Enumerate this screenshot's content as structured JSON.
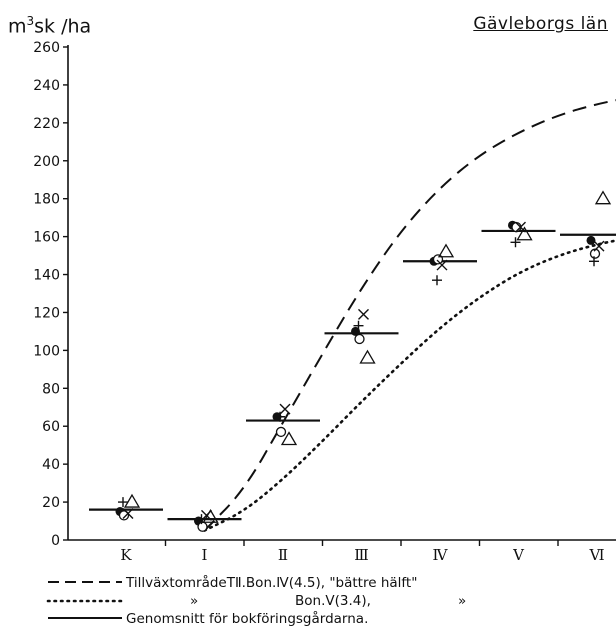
{
  "chart_data": {
    "type": "scatter",
    "title": "Gävleborgs län",
    "ylabel_main": "m",
    "ylabel_sup": "3",
    "ylabel_rest": "sk /ha",
    "ylim": [
      0,
      260
    ],
    "yticks": [
      0,
      20,
      40,
      60,
      80,
      100,
      120,
      140,
      160,
      180,
      200,
      220,
      240,
      260
    ],
    "categories": [
      "K",
      "I",
      "II",
      "III",
      "IV",
      "V",
      "VI"
    ],
    "category_labels": [
      "K",
      "I",
      "Ⅱ",
      "Ⅲ",
      "Ⅳ",
      "Ⅴ",
      "Ⅵ"
    ],
    "average_label": "Genomsnitt för bokföringsgårdarna",
    "averages": [
      16,
      11,
      63,
      109,
      147,
      163,
      161
    ],
    "point_series": [
      {
        "marker": "filled-circle",
        "values": [
          15,
          10,
          65,
          110,
          147,
          166,
          158
        ]
      },
      {
        "marker": "open-circle",
        "values": [
          13,
          7,
          57,
          106,
          148,
          165,
          151
        ]
      },
      {
        "marker": "cross",
        "values": [
          14,
          13,
          69,
          119,
          145,
          165,
          155
        ]
      },
      {
        "marker": "plus",
        "values": [
          20,
          11,
          65,
          113,
          137,
          157,
          147
        ]
      },
      {
        "marker": "triangle",
        "values": [
          20,
          12,
          53,
          96,
          152,
          161,
          180
        ]
      }
    ],
    "curves": [
      {
        "name": "Tillväxtområde T II. Bon. IV (4.5), \"bättre hälft\"",
        "style": "dashed",
        "x": [
          1.0,
          1.5,
          2.0,
          2.5,
          3.0,
          3.5,
          4.0,
          4.5,
          5.0,
          5.5,
          6.0,
          6.5,
          7.0
        ],
        "y": [
          5,
          26,
          62,
          98,
          133,
          163,
          186,
          203,
          215,
          224,
          230,
          234,
          236
        ]
      },
      {
        "name": "Bon. V (3.4)",
        "style": "dotted",
        "x": [
          1.0,
          1.5,
          2.0,
          2.5,
          3.0,
          3.5,
          4.0,
          4.5,
          5.0,
          5.5,
          6.0,
          6.5,
          7.0
        ],
        "y": [
          5,
          15,
          32,
          52,
          73,
          93,
          112,
          128,
          141,
          150,
          156,
          160,
          161
        ]
      }
    ]
  },
  "legend": {
    "line1_name": "TillväxtområdeTⅡ.Bon.Ⅳ(4.5), \"bättre hälft\"",
    "line2_quote": "»",
    "line2_name": "Bon.Ⅴ(3.4),",
    "line2_quote_end": "»",
    "line3_name": "Genomsnitt för bokföringsgårdarna."
  }
}
